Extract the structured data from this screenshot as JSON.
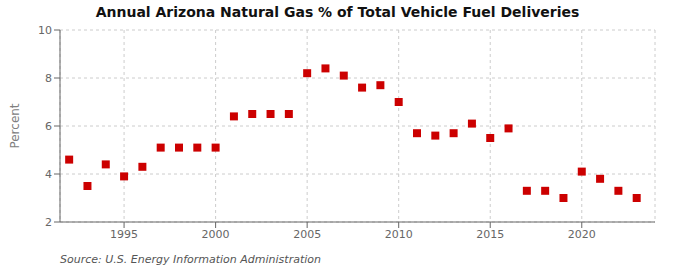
{
  "chart_data": {
    "type": "scatter",
    "title": "Annual Arizona Natural Gas % of Total Vehicle Fuel Deliveries",
    "ylabel": "Percent",
    "annotations": [
      "Source: U.S. Energy Information Administration"
    ],
    "x": [
      1992,
      1993,
      1994,
      1995,
      1996,
      1997,
      1998,
      1999,
      2000,
      2001,
      2002,
      2003,
      2004,
      2005,
      2006,
      2007,
      2008,
      2009,
      2010,
      2011,
      2012,
      2013,
      2014,
      2015,
      2016,
      2017,
      2018,
      2019,
      2020,
      2021,
      2022,
      2023
    ],
    "values": [
      4.6,
      3.5,
      4.4,
      3.9,
      4.3,
      5.1,
      5.1,
      5.1,
      5.1,
      6.4,
      6.5,
      6.5,
      6.5,
      8.2,
      8.4,
      8.1,
      7.6,
      7.7,
      7.0,
      5.7,
      5.6,
      5.7,
      6.1,
      5.5,
      5.9,
      3.3,
      3.3,
      3.0,
      4.1,
      3.8,
      3.3,
      3.0
    ],
    "color": "#cc0000",
    "marker": "square",
    "xlim": [
      1991.5,
      2024
    ],
    "ylim": [
      2,
      10
    ],
    "xticks": [
      1995,
      2000,
      2005,
      2010,
      2015,
      2020
    ],
    "yticks": [
      2,
      4,
      6,
      8,
      10
    ],
    "grid": true
  }
}
